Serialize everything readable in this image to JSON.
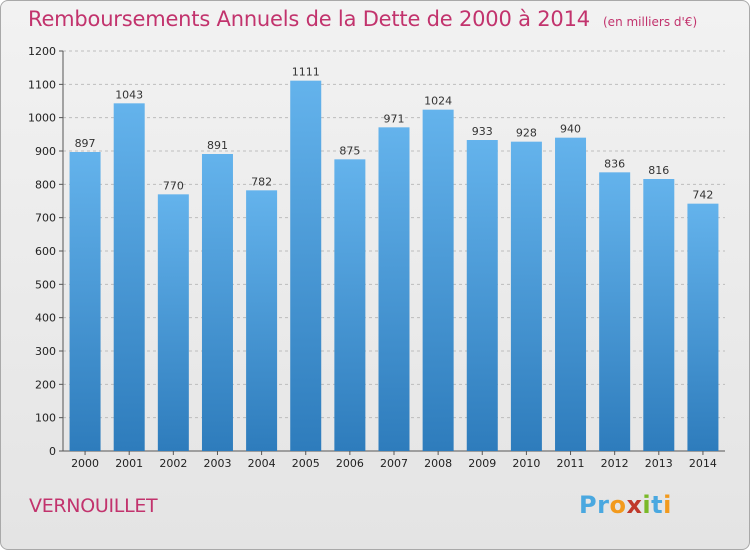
{
  "header": {
    "title": "Remboursements Annuels de la Dette de 2000 à 2014",
    "unit": "(en milliers d'€)"
  },
  "footer": {
    "commune": "VERNOUILLET",
    "logo_text": "Proxiti",
    "logo_colors": [
      "#4aa8e0",
      "#4aa8e0",
      "#f29a1d",
      "#c0392b",
      "#7ab929",
      "#4aa8e0",
      "#f29a1d"
    ]
  },
  "colors": {
    "bar_light": "#64b3ec",
    "bar_dark": "#2e7cbc",
    "title": "#c2336d",
    "grid": "#bdbdbd"
  },
  "chart_data": {
    "type": "bar",
    "categories": [
      "2000",
      "2001",
      "2002",
      "2003",
      "2004",
      "2005",
      "2006",
      "2007",
      "2008",
      "2009",
      "2010",
      "2011",
      "2012",
      "2013",
      "2014"
    ],
    "values": [
      897,
      1043,
      770,
      891,
      782,
      1111,
      875,
      971,
      1024,
      933,
      928,
      940,
      836,
      816,
      742
    ],
    "ylim": [
      0,
      1200
    ],
    "yticks": [
      0,
      100,
      200,
      300,
      400,
      500,
      600,
      700,
      800,
      900,
      1000,
      1100,
      1200
    ],
    "grid": true,
    "grid_style": "dashed-horizontal"
  }
}
